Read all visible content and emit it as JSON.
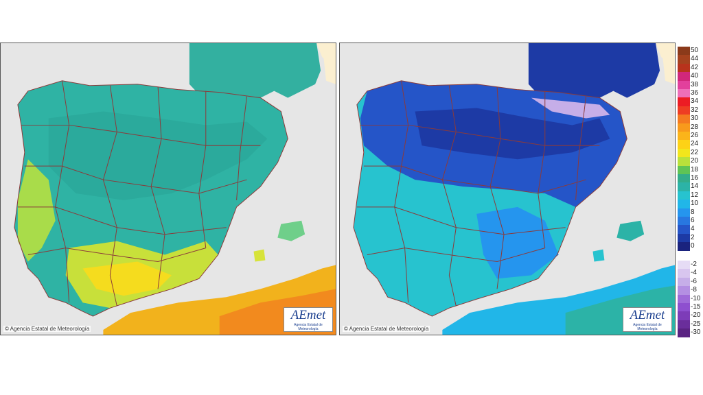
{
  "maps": [
    {
      "copyright": "© Agencia Estatal de Meteorología",
      "logo_text": "AEmet",
      "logo_subtext": "Agencia Estatal de Meteorología"
    },
    {
      "copyright": "© Agencia Estatal de Meteorología",
      "logo_text": "AEmet",
      "logo_subtext": "Agencia Estatal de Meteorología"
    }
  ],
  "scale": {
    "positive": [
      {
        "label": "50",
        "color": "#8b3a1a"
      },
      {
        "label": "44",
        "color": "#a5421e"
      },
      {
        "label": "42",
        "color": "#b8331c"
      },
      {
        "label": "40",
        "color": "#d1277a"
      },
      {
        "label": "38",
        "color": "#e2409c"
      },
      {
        "label": "36",
        "color": "#ee6fb9"
      },
      {
        "label": "34",
        "color": "#ec1c24"
      },
      {
        "label": "32",
        "color": "#ee3d23"
      },
      {
        "label": "30",
        "color": "#f47a20"
      },
      {
        "label": "28",
        "color": "#f89a1c"
      },
      {
        "label": "26",
        "color": "#fbb41a"
      },
      {
        "label": "24",
        "color": "#fdd216"
      },
      {
        "label": "22",
        "color": "#f2e61c"
      },
      {
        "label": "20",
        "color": "#b9e13b"
      },
      {
        "label": "18",
        "color": "#5fc455"
      },
      {
        "label": "16",
        "color": "#33ad8a"
      },
      {
        "label": "14",
        "color": "#2cb3a7"
      },
      {
        "label": "12",
        "color": "#27c3cf"
      },
      {
        "label": "10",
        "color": "#21b6e8"
      },
      {
        "label": "8",
        "color": "#2595ee"
      },
      {
        "label": "6",
        "color": "#2877e0"
      },
      {
        "label": "4",
        "color": "#2555c8"
      },
      {
        "label": "2",
        "color": "#1d3aa5"
      },
      {
        "label": "0",
        "color": "#1a237e"
      }
    ],
    "negative": [
      {
        "label": "-2",
        "color": "#e6dcf5"
      },
      {
        "label": "-4",
        "color": "#d8c6ef"
      },
      {
        "label": "-6",
        "color": "#c6aee8"
      },
      {
        "label": "-8",
        "color": "#b48fe2"
      },
      {
        "label": "-10",
        "color": "#9f6ad8"
      },
      {
        "label": "-15",
        "color": "#8e4fcf"
      },
      {
        "label": "-20",
        "color": "#7d3cb8"
      },
      {
        "label": "-25",
        "color": "#6a2e9b"
      },
      {
        "label": "-30",
        "color": "#5a2382"
      }
    ]
  }
}
